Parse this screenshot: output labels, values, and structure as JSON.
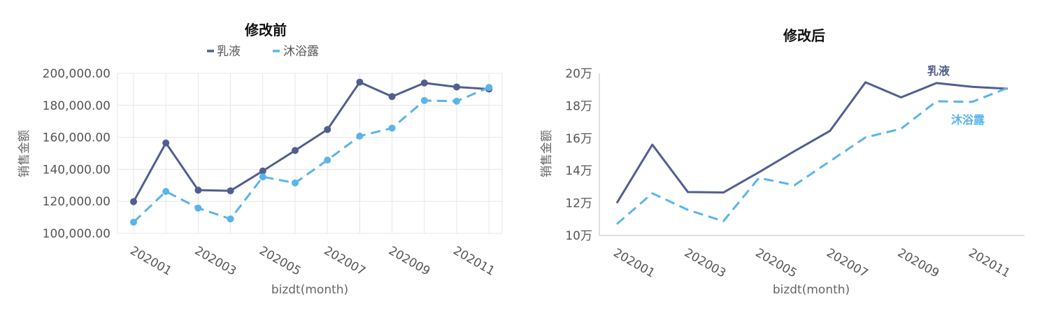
{
  "chart_data": [
    {
      "type": "line",
      "title": "修改前",
      "xlabel": "bizdt(month)",
      "ylabel": "销售金额",
      "ylim": [
        100000,
        200000
      ],
      "y_ticks": [
        "100,000.00",
        "120,000.00",
        "140,000.00",
        "160,000.00",
        "180,000.00",
        "200,000.00"
      ],
      "x_ticks": [
        "202001",
        "202003",
        "202005",
        "202007",
        "202009",
        "202011"
      ],
      "categories": [
        "202001",
        "202002",
        "202003",
        "202004",
        "202005",
        "202006",
        "202007",
        "202008",
        "202009",
        "202010",
        "202011",
        "202012"
      ],
      "grid": true,
      "markers": true,
      "legend": "top",
      "series": [
        {
          "name": "乳液",
          "color": "#525e8f",
          "style": "solid",
          "values": [
            119800,
            156500,
            127000,
            126600,
            139000,
            151800,
            164900,
            194500,
            185500,
            194000,
            191500,
            190200
          ]
        },
        {
          "name": "沐浴露",
          "color": "#5ab4ea",
          "style": "dashed",
          "values": [
            107000,
            126200,
            115800,
            109000,
            135300,
            131500,
            145800,
            160800,
            165800,
            183000,
            182600,
            191200
          ]
        }
      ]
    },
    {
      "type": "line",
      "title": "修改后",
      "xlabel": "bizdt(month)",
      "ylabel": "销售金额",
      "ylim": [
        100000,
        200000
      ],
      "y_ticks": [
        "10万",
        "12万",
        "14万",
        "16万",
        "18万",
        "20万"
      ],
      "x_ticks": [
        "202001",
        "202003",
        "202005",
        "202007",
        "202009",
        "202011"
      ],
      "categories": [
        "202001",
        "202002",
        "202003",
        "202004",
        "202005",
        "202006",
        "202007",
        "202008",
        "202009",
        "202010",
        "202011",
        "202012"
      ],
      "grid": false,
      "markers": false,
      "legend": "end-labels",
      "series": [
        {
          "name": "乳液",
          "color": "#525e8f",
          "style": "solid",
          "values": [
            120000,
            156000,
            126800,
            126500,
            139000,
            152000,
            164500,
            194500,
            185200,
            194000,
            191700,
            190500
          ]
        },
        {
          "name": "沐浴露",
          "color": "#5ab4ea",
          "style": "dashed",
          "values": [
            107000,
            126000,
            115800,
            108800,
            135500,
            131000,
            145800,
            160500,
            165800,
            182800,
            182400,
            191000
          ]
        }
      ]
    }
  ]
}
